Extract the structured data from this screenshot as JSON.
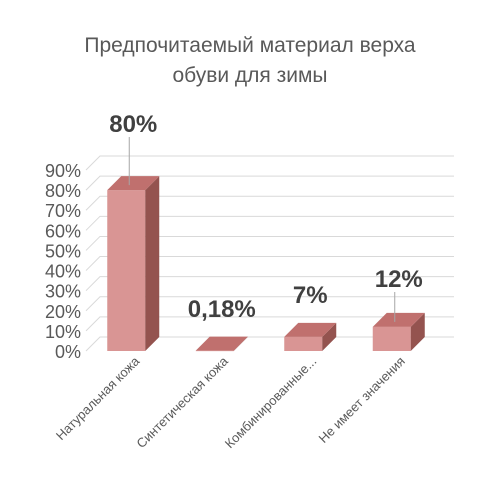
{
  "chart_data": {
    "type": "bar",
    "style": "3d-column",
    "title_lines": [
      "Предпочитаемый материал верха",
      "обуви для зимы"
    ],
    "categories": [
      "Натуральная кожа",
      "Синтетическая кожа",
      "Комбинированные...",
      "Не имеет значения"
    ],
    "values": [
      80,
      0.18,
      7,
      12
    ],
    "data_labels": [
      "80%",
      "0,18%",
      "7%",
      "12%"
    ],
    "ylim": [
      0,
      90
    ],
    "yticks": [
      "0%",
      "10%",
      "20%",
      "30%",
      "40%",
      "50%",
      "60%",
      "70%",
      "80%",
      "90%"
    ],
    "grid": true,
    "legend": "none",
    "colors": {
      "front": "#d99594",
      "top": "#c0706e",
      "side": "#94534f",
      "grid": "#d9d9d9",
      "text": "#595959",
      "label": "#404040"
    }
  }
}
